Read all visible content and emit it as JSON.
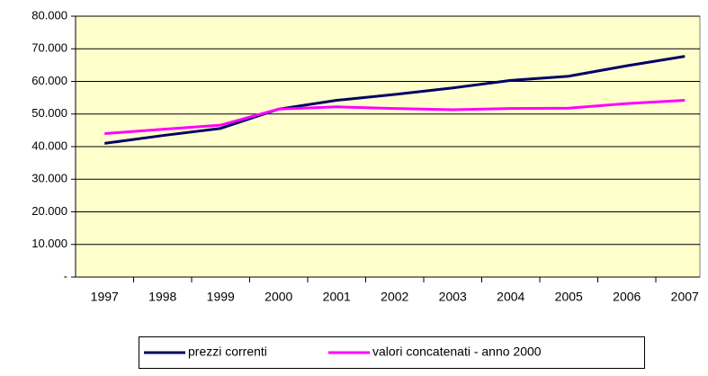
{
  "chart_data": {
    "type": "line",
    "categories": [
      "1997",
      "1998",
      "1999",
      "2000",
      "2001",
      "2002",
      "2003",
      "2004",
      "2005",
      "2006",
      "2007"
    ],
    "series": [
      {
        "name": "prezzi correnti",
        "color": "#000066",
        "values": [
          41000,
          43400,
          45600,
          51500,
          54200,
          56000,
          58000,
          60300,
          61600,
          64800,
          67700
        ]
      },
      {
        "name": "valori concatenati - anno 2000",
        "color": "#ff00ff",
        "values": [
          44000,
          45300,
          46600,
          51500,
          52200,
          51700,
          51300,
          51700,
          51800,
          53200,
          54200
        ]
      }
    ],
    "ylim": [
      0,
      80000
    ],
    "yticks": [
      {
        "value": 0,
        "label": "-"
      },
      {
        "value": 10000,
        "label": "10.000"
      },
      {
        "value": 20000,
        "label": "20.000"
      },
      {
        "value": 30000,
        "label": "30.000"
      },
      {
        "value": 40000,
        "label": "40.000"
      },
      {
        "value": 50000,
        "label": "50.000"
      },
      {
        "value": 60000,
        "label": "60.000"
      },
      {
        "value": 70000,
        "label": "70.000"
      },
      {
        "value": 80000,
        "label": "80.000"
      }
    ],
    "grid": true,
    "legend": "bottom",
    "background": "#ffffcc"
  }
}
